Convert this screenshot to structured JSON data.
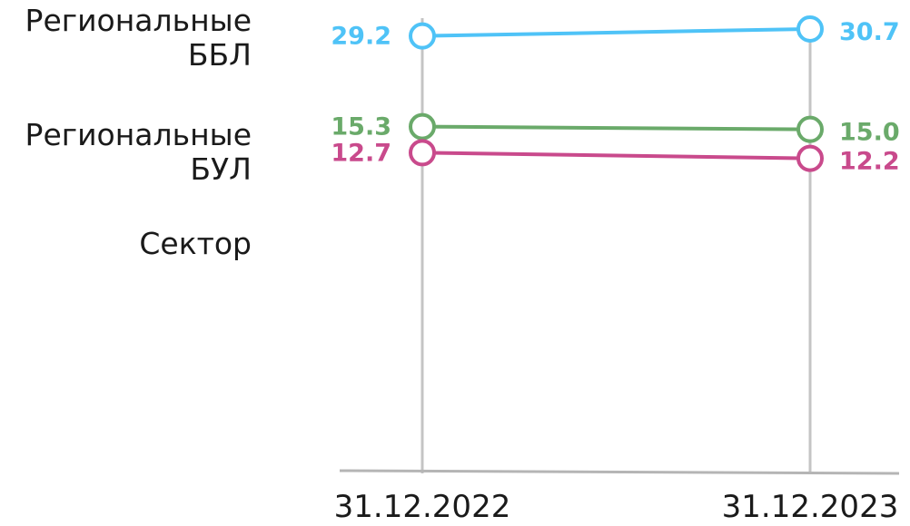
{
  "chart_data": {
    "type": "line",
    "title": "",
    "xlabel": "",
    "ylabel": "",
    "categories": [
      "31.12.2022",
      "31.12.2023"
    ],
    "series": [
      {
        "name": "Региональные ББЛ",
        "name_lines": [
          "Региональные",
          "ББЛ"
        ],
        "values": [
          29.2,
          30.7
        ],
        "color": "#4fc3f7"
      },
      {
        "name": "Региональные БУЛ",
        "name_lines": [
          "Региональные",
          "БУЛ"
        ],
        "values": [
          15.3,
          15.0
        ],
        "color": "#6aaa6a"
      },
      {
        "name": "Сектор",
        "name_lines": [
          "Сектор"
        ],
        "values": [
          12.7,
          12.2
        ],
        "color": "#c94a8c"
      }
    ],
    "value_labels": [
      [
        "29.2",
        "30.7"
      ],
      [
        "15.3",
        "15.0"
      ],
      [
        "12.7",
        "12.2"
      ]
    ],
    "grid": "vertical lines at categories",
    "legend": "left, inline labels"
  }
}
